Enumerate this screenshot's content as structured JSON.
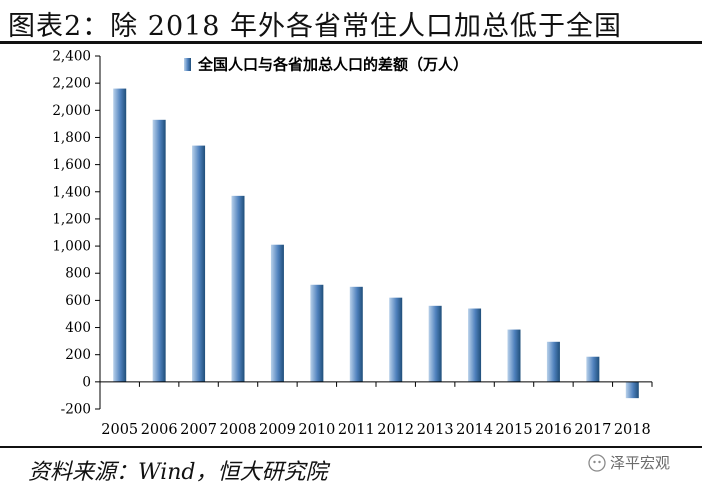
{
  "header": {
    "title": "图表2：除 2018 年外各省常住人口加总低于全国"
  },
  "footer": {
    "source": "资料来源：Wind，恒大研究院",
    "watermark": "泽平宏观"
  },
  "colors": {
    "bar_light": "#b9d1ea",
    "bar_mid": "#4f81bd",
    "bar_dark": "#1f4e79",
    "axis": "#000000"
  },
  "chart_data": {
    "type": "bar",
    "title": "",
    "xlabel": "",
    "ylabel": "",
    "categories": [
      "2005",
      "2006",
      "2007",
      "2008",
      "2009",
      "2010",
      "2011",
      "2012",
      "2013",
      "2014",
      "2015",
      "2016",
      "2017",
      "2018"
    ],
    "series": [
      {
        "name": "全国人口与各省加总人口的差额（万人）",
        "values": [
          2160,
          1930,
          1740,
          1370,
          1010,
          715,
          700,
          620,
          560,
          540,
          385,
          295,
          185,
          -120
        ]
      }
    ],
    "ylim": [
      -200,
      2400
    ],
    "yticks": [
      -200,
      0,
      200,
      400,
      600,
      800,
      1000,
      1200,
      1400,
      1600,
      1800,
      2000,
      2200,
      2400
    ],
    "ytick_labels": [
      "-200",
      "0",
      "200",
      "400",
      "600",
      "800",
      "1,000",
      "1,200",
      "1,400",
      "1,600",
      "1,800",
      "2,000",
      "2,200",
      "2,400"
    ],
    "legend": "top-center",
    "grid": false
  }
}
